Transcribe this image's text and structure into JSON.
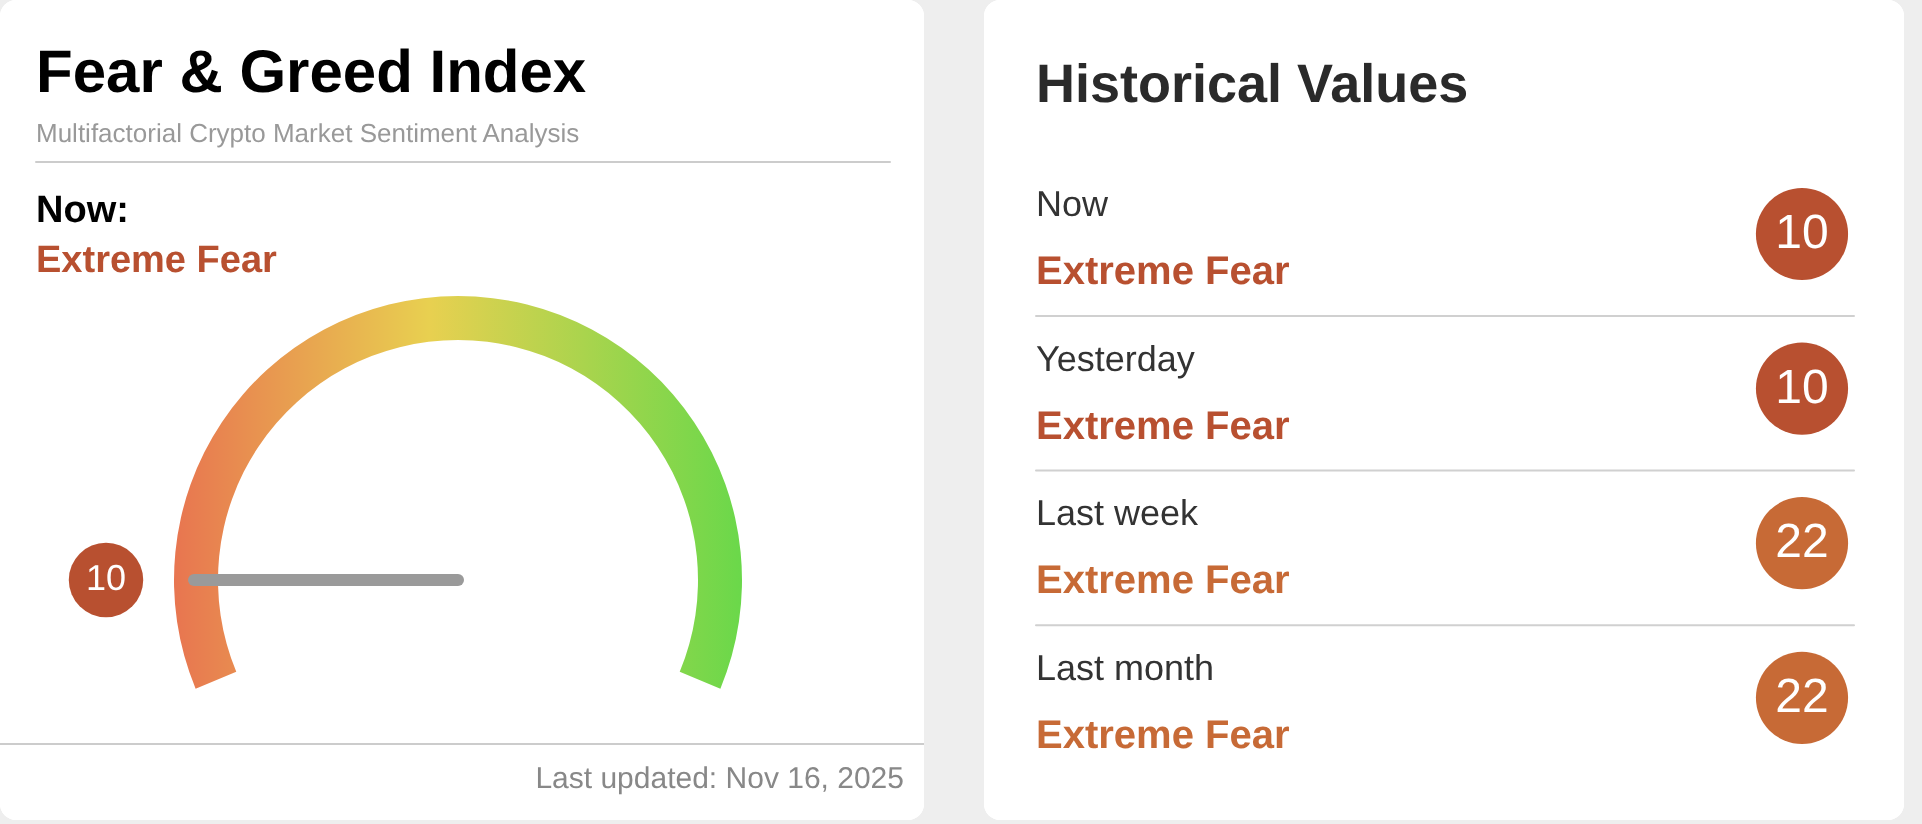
{
  "chart_data": [
    {
      "type": "other",
      "title": "Fear & Greed Index",
      "subtitle": "Multifactorial Crypto Market Sentiment Analysis",
      "xlabel": "Now:",
      "categories": [
        "Extreme Fear"
      ],
      "values": [
        10
      ],
      "data_labels": true,
      "annotations": [
        "Last updated: Nov 16, 2025"
      ]
    },
    {
      "type": "other",
      "title": "Historical Values",
      "categories": [
        "Now",
        "Yesterday",
        "Last week",
        "Last month"
      ],
      "y2_categories": [
        "Extreme Fear",
        "Extreme Fear",
        "Extreme Fear",
        "Extreme Fear"
      ],
      "values": [
        10,
        10,
        22,
        22
      ],
      "data_labels": true
    }
  ]
}
